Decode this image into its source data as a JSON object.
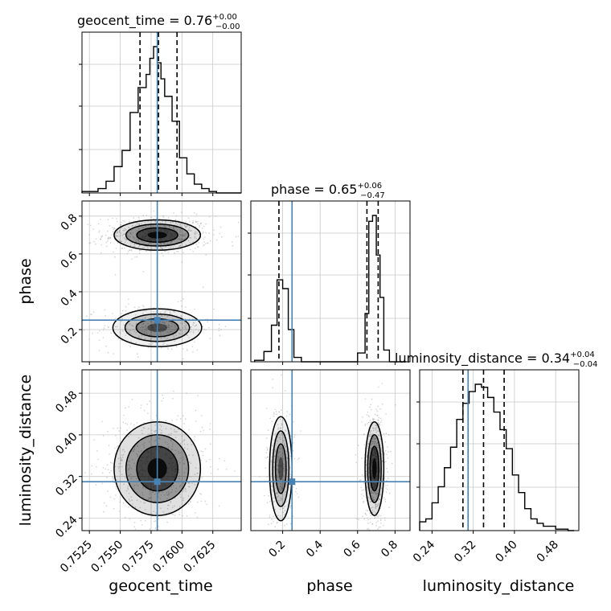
{
  "chart_data": {
    "type": "corner",
    "parameters": [
      "geocent_time",
      "phase",
      "luminosity_distance"
    ],
    "truths": {
      "geocent_time": 0.758,
      "phase": 0.25,
      "luminosity_distance": 0.31
    },
    "colors": {
      "truth": "#4682b4",
      "hist": "#000000",
      "grid": "#c8c8c8",
      "samples": "#9a9a9a"
    },
    "grid": true,
    "titles": [
      {
        "param": "geocent_time",
        "label": "geocent_time = 0.76",
        "plus": "+0.00",
        "minus": "−0.00"
      },
      {
        "param": "phase",
        "label": "phase = 0.65",
        "plus": "+0.06",
        "minus": "−0.47"
      },
      {
        "param": "luminosity_distance",
        "label": "luminosity_distance = 0.34",
        "plus": "+0.04",
        "minus": "−0.04"
      }
    ],
    "axis_labels": {
      "x": [
        "geocent_time",
        "phase",
        "luminosity_distance"
      ],
      "y": [
        "phase",
        "luminosity_distance"
      ]
    },
    "ranges": {
      "geocent_time": [
        0.7519,
        0.7648
      ],
      "phase": [
        0.03,
        0.88
      ],
      "luminosity_distance": [
        0.216,
        0.525
      ]
    },
    "tick_labels": {
      "geocent_time": [
        "0.7525",
        "0.7550",
        "0.7575",
        "0.7600",
        "0.7625"
      ],
      "phase_x": [
        "0.2",
        "0.4",
        "0.6",
        "0.8"
      ],
      "phase_y": [
        "0.2",
        "0.4",
        "0.6",
        "0.8"
      ],
      "luminosity_distance_x": [
        "0.24",
        "0.32",
        "0.40",
        "0.48"
      ],
      "luminosity_distance_y": [
        "0.24",
        "0.32",
        "0.40",
        "0.48"
      ]
    },
    "ticks": {
      "geocent_time": [
        0.7525,
        0.755,
        0.7575,
        0.76,
        0.7625
      ],
      "phase": [
        0.2,
        0.4,
        0.6,
        0.8
      ],
      "luminosity_distance": [
        0.24,
        0.32,
        0.4,
        0.48
      ]
    },
    "quantile_lines": {
      "geocent_time": [
        0.7566,
        0.7581,
        0.7596
      ],
      "phase": [
        0.18,
        0.65,
        0.71
      ],
      "luminosity_distance": [
        0.3,
        0.34,
        0.38
      ]
    },
    "histograms": {
      "geocent_time": {
        "bins": [
          0.7519,
          0.75255,
          0.7532,
          0.75385,
          0.7545,
          0.75515,
          0.7558,
          0.75645,
          0.7571,
          0.7574,
          0.7577,
          0.758,
          0.7583,
          0.7586,
          0.7592,
          0.7598,
          0.7604,
          0.761,
          0.7616,
          0.7622,
          0.7628,
          0.7634,
          0.7648
        ],
        "counts": [
          1,
          1,
          3,
          8,
          18,
          29,
          55,
          72,
          81,
          92,
          100,
          89,
          78,
          66,
          49,
          24,
          13,
          6,
          3,
          1,
          0,
          0
        ]
      },
      "phase": {
        "bins": [
          0.05,
          0.1,
          0.14,
          0.17,
          0.2,
          0.23,
          0.26,
          0.3,
          0.6,
          0.64,
          0.66,
          0.68,
          0.7,
          0.72,
          0.74,
          0.77,
          0.86
        ],
        "counts": [
          1,
          7,
          25,
          56,
          50,
          22,
          3,
          0,
          6,
          33,
          96,
          100,
          73,
          44,
          8,
          0
        ]
      },
      "luminosity_distance": {
        "bins": [
          0.216,
          0.228,
          0.24,
          0.252,
          0.264,
          0.276,
          0.288,
          0.3,
          0.312,
          0.324,
          0.336,
          0.348,
          0.36,
          0.372,
          0.384,
          0.396,
          0.408,
          0.42,
          0.432,
          0.444,
          0.456,
          0.468,
          0.48,
          0.492,
          0.504,
          0.516
        ],
        "counts": [
          6,
          8,
          19,
          30,
          43,
          57,
          76,
          87,
          95,
          100,
          98,
          91,
          81,
          69,
          56,
          38,
          26,
          15,
          8,
          5,
          3,
          3,
          1,
          1,
          0
        ]
      }
    },
    "density_blobs": {
      "geocent_time_vs_phase": [
        {
          "x": 0.758,
          "y": 0.7,
          "sx": 0.00175,
          "sy": 0.04,
          "w": 1.0
        },
        {
          "x": 0.758,
          "y": 0.21,
          "sx": 0.0018,
          "sy": 0.05,
          "w": 0.55
        }
      ],
      "geocent_time_vs_luminosity_distance": [
        {
          "x": 0.758,
          "y": 0.335,
          "sx": 0.00175,
          "sy": 0.045,
          "w": 1.0
        }
      ],
      "phase_vs_luminosity_distance": [
        {
          "x": 0.19,
          "y": 0.335,
          "sx": 0.03,
          "sy": 0.05,
          "w": 0.55
        },
        {
          "x": 0.69,
          "y": 0.335,
          "sx": 0.025,
          "sy": 0.045,
          "w": 1.0
        }
      ]
    }
  }
}
